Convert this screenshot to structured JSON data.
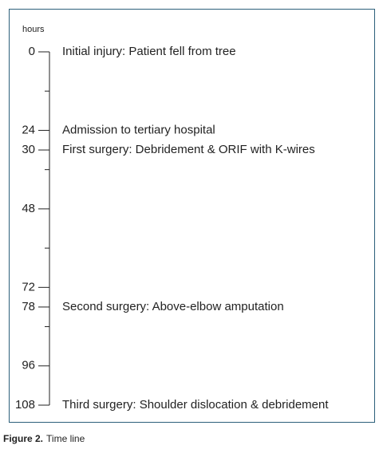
{
  "chart_data": {
    "type": "timeline",
    "axis_label": "hours",
    "ylim": [
      0,
      108
    ],
    "yticks": [
      0,
      24,
      30,
      48,
      72,
      78,
      96,
      108
    ],
    "minor_yticks": [
      12,
      36,
      60,
      84
    ],
    "events": [
      {
        "value": 0,
        "label": "Initial injury: Patient fell from tree"
      },
      {
        "value": 24,
        "label": "Admission to tertiary hospital"
      },
      {
        "value": 30,
        "label": "First surgery: Debridement & ORIF with K-wires"
      },
      {
        "value": 78,
        "label": "Second surgery: Above-elbow amputation"
      },
      {
        "value": 108,
        "label": "Third surgery: Shoulder dislocation & debridement"
      }
    ],
    "color": "#222222",
    "caption_label": "Figure 2.",
    "caption_text": "Time line"
  }
}
